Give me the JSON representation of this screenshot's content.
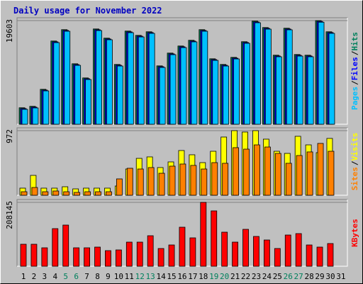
{
  "chart_data": [
    {
      "type": "bar",
      "title": "Daily usage for November 2022",
      "separator": "/",
      "ylim": [
        0,
        19603
      ],
      "yticks": [
        19603
      ],
      "series": [
        {
          "name": "Hits",
          "color": "#00805c",
          "values": [
            3120,
            3390,
            6610,
            15740,
            17890,
            11440,
            8760,
            18020,
            16280,
            11310,
            17620,
            16810,
            17490,
            11040,
            13460,
            14800,
            15880,
            17890,
            12380,
            11310,
            12650,
            15610,
            19500,
            18290,
            13060,
            18160,
            13190,
            13060,
            19603,
            17490,
            null
          ]
        },
        {
          "name": "Files",
          "color": "#0000ff",
          "values": [
            2970,
            3240,
            6460,
            15590,
            17740,
            11290,
            8610,
            17870,
            16130,
            11160,
            17470,
            16660,
            17340,
            10890,
            13310,
            14650,
            15730,
            17740,
            12230,
            11160,
            12500,
            15460,
            19350,
            18140,
            12910,
            18010,
            13040,
            12910,
            19450,
            17340,
            null
          ]
        },
        {
          "name": "Pages",
          "color": "#00c0ff",
          "values": [
            2820,
            3090,
            6310,
            15440,
            17590,
            11140,
            8460,
            17720,
            15980,
            11010,
            17320,
            16510,
            17190,
            10740,
            13160,
            14500,
            15580,
            17590,
            12080,
            11010,
            12350,
            15310,
            19200,
            17990,
            12760,
            17860,
            12890,
            12760,
            19300,
            17190,
            null
          ]
        }
      ]
    },
    {
      "type": "bar",
      "ylim": [
        0,
        972
      ],
      "yticks": [
        972
      ],
      "series": [
        {
          "name": "Visits",
          "color": "#ffff00",
          "values": [
            107,
            299,
            107,
            107,
            128,
            96,
            107,
            107,
            107,
            139,
            395,
            555,
            577,
            417,
            502,
            673,
            609,
            491,
            662,
            876,
            972,
            951,
            972,
            844,
            662,
            630,
            887,
            758,
            641,
            855,
            null
          ]
        },
        {
          "name": "Sites",
          "color": "#ff8000",
          "values": [
            53,
            117,
            53,
            64,
            53,
            43,
            53,
            53,
            53,
            246,
            406,
            395,
            417,
            331,
            438,
            470,
            449,
            395,
            491,
            481,
            716,
            694,
            758,
            726,
            630,
            481,
            598,
            652,
            780,
            662,
            null
          ]
        }
      ]
    },
    {
      "type": "bar",
      "ylim": [
        0,
        208145
      ],
      "yticks": [
        208145
      ],
      "categories": [
        "1",
        "2",
        "3",
        "4",
        "5",
        "6",
        "7",
        "8",
        "9",
        "10",
        "11",
        "12",
        "13",
        "14",
        "15",
        "16",
        "17",
        "18",
        "19",
        "20",
        "21",
        "22",
        "23",
        "24",
        "25",
        "26",
        "27",
        "28",
        "29",
        "30",
        "31"
      ],
      "category_color": "#000000",
      "highlight_color": "#00805c",
      "highlight_categories": [
        4,
        5,
        11,
        12,
        18,
        19,
        25,
        26
      ],
      "series": [
        {
          "name": "KBytes",
          "color": "#ff0000",
          "values": [
            71695,
            71695,
            60130,
            122575,
            134140,
            60130,
            60130,
            62445,
            50880,
            53190,
            78630,
            78630,
            99450,
            57820,
            69380,
            127200,
            92510,
            208145,
            180390,
            111010,
            78630,
            120260,
            97130,
            85570,
            57820,
            101760,
            106385,
            69380,
            62445,
            74000,
            null
          ]
        }
      ]
    }
  ]
}
